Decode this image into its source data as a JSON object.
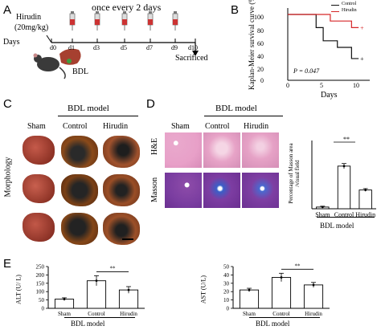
{
  "panel_a": {
    "label": "A",
    "treatment": "Hirudin",
    "dose": "(20mg/kg)",
    "schedule": "once every 2 days",
    "days_label": "Days",
    "days": [
      "d0",
      "d1",
      "d3",
      "d5",
      "d7",
      "d9",
      "d10"
    ],
    "model": "BDL",
    "endpoint": "Sacrificed"
  },
  "panel_b": {
    "label": "B",
    "ylabel": "Kaplan-Meier survival curve (%)",
    "xlabel": "Days",
    "legend": [
      "Control",
      "Hirudin"
    ],
    "pvalue": "P = 0.047",
    "xticks": [
      "0",
      "5",
      "10"
    ],
    "yticks": [
      "0",
      "20",
      "40",
      "60",
      "80",
      "100"
    ]
  },
  "panel_c": {
    "label": "C",
    "group_title": "BDL model",
    "columns": [
      "Sham",
      "Control",
      "Hirudin"
    ],
    "row_label": "Morphology"
  },
  "panel_d": {
    "label": "D",
    "group_title": "BDL model",
    "columns": [
      "Sham",
      "Control",
      "Hirudin"
    ],
    "rows": [
      "H&E",
      "Masson"
    ],
    "chart_ylabel": "Percentage of Masson area /visual field",
    "chart_group": "BDL model",
    "sig": "**"
  },
  "panel_e": {
    "label": "E",
    "alt_ylabel": "ALT (U/ L)",
    "ast_ylabel": "AST (U/L)",
    "group": "BDL model",
    "sig": "**"
  },
  "colors": {
    "control": "#111111",
    "hirudin": "#d62728",
    "he_stain": "#e7a3c7",
    "masson_stain": "#7a3da0"
  },
  "chart_data": [
    {
      "type": "line",
      "title": "",
      "xlabel": "Days",
      "ylabel": "Kaplan-Meier survival curve (%)",
      "xlim": [
        0,
        11
      ],
      "ylim": [
        0,
        100
      ],
      "series": [
        {
          "name": "Control",
          "x": [
            0,
            4,
            4,
            5,
            5,
            7,
            7,
            9,
            9,
            10
          ],
          "values": [
            100,
            100,
            80,
            80,
            60,
            60,
            50,
            50,
            33,
            33
          ]
        },
        {
          "name": "Hirudin",
          "x": [
            0,
            6,
            6,
            9,
            9,
            10
          ],
          "values": [
            100,
            100,
            90,
            90,
            80,
            80
          ]
        }
      ]
    },
    {
      "type": "bar",
      "title": "",
      "categories": [
        "Sham",
        "Control",
        "Hirudin"
      ],
      "values": [
        1,
        25,
        11
      ],
      "errors": [
        0.5,
        1.5,
        0.8
      ],
      "ylabel": "Percentage of Masson area /visual field",
      "xlabel": "BDL model",
      "ylim": [
        0,
        40
      ]
    },
    {
      "type": "bar",
      "title": "",
      "categories": [
        "Sham",
        "Control",
        "Hirudin"
      ],
      "values": [
        55,
        165,
        110
      ],
      "errors": [
        8,
        30,
        20
      ],
      "ylabel": "ALT (U/ L)",
      "xlabel": "BDL model",
      "ylim": [
        0,
        250
      ],
      "yticks": [
        0,
        50,
        100,
        150,
        200,
        250
      ]
    },
    {
      "type": "bar",
      "title": "",
      "categories": [
        "Sham",
        "Control",
        "Hirudin"
      ],
      "values": [
        22,
        37,
        28
      ],
      "errors": [
        2,
        5,
        3
      ],
      "ylabel": "AST (U/L)",
      "xlabel": "BDL model",
      "ylim": [
        0,
        50
      ],
      "yticks": [
        0,
        10,
        20,
        30,
        40,
        50
      ]
    }
  ]
}
